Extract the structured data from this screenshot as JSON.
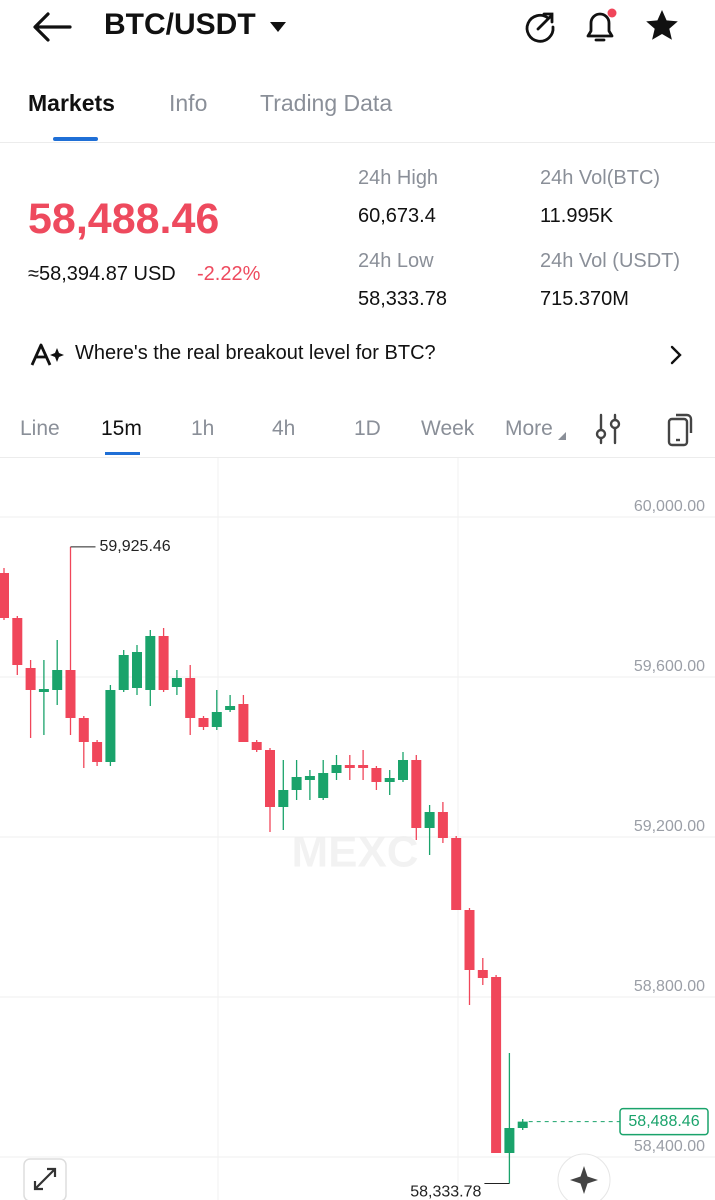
{
  "header": {
    "pair": "BTC/USDT"
  },
  "tabs": [
    "Markets",
    "Info",
    "Trading Data"
  ],
  "price": {
    "last": "58,488.46",
    "usd": "≈58,394.87 USD",
    "change": "-2.22%"
  },
  "stats": [
    {
      "label": "24h High",
      "value": "60,673.4"
    },
    {
      "label": "24h Vol(BTC)",
      "value": "11.995K"
    },
    {
      "label": "24h Low",
      "value": "58,333.78"
    },
    {
      "label": "24h Vol (USDT)",
      "value": "715.370M"
    }
  ],
  "banner": "Where's the real breakout level for BTC?",
  "timeframes": [
    "Line",
    "15m",
    "1h",
    "4h",
    "1D",
    "Week",
    "More"
  ],
  "chart_data": {
    "type": "candlestick",
    "watermark": "MEXC",
    "up_color": "#1aa36b",
    "down_color": "#f0465a",
    "open": [
      59860,
      59747.5,
      59622.5,
      59562.5,
      59567.5,
      59617.5,
      59497.5,
      59437.5,
      59387.5,
      59567.5,
      59572.5,
      59567.5,
      59702.5,
      59575,
      59597.5,
      59497.5,
      59475,
      59517.5,
      59532.5,
      59437.5,
      59417.5,
      59275,
      59317.5,
      59342.5,
      59297.5,
      59360,
      59380,
      59380,
      59372.5,
      59337.5,
      59342.5,
      59392.5,
      59222.5,
      59262.5,
      59197.5,
      59017.5,
      58867.5,
      58850,
      58410,
      58472.5
    ],
    "high": [
      59872.5,
      59752.5,
      59642.5,
      59642.5,
      59692.5,
      59925.46,
      59502.5,
      59442.5,
      59580,
      59667.5,
      59680,
      59717.5,
      59722.5,
      59617.5,
      59630,
      59502.5,
      59567.5,
      59555,
      59555,
      59442.5,
      59422.5,
      59392.5,
      59392.5,
      59367.5,
      59392.5,
      59405,
      59405,
      59417.5,
      59377.5,
      59367.5,
      59412.5,
      59405,
      59280,
      59287.5,
      59202.5,
      59022.5,
      58897.5,
      58855,
      58660,
      58495
    ],
    "low": [
      59742.5,
      59605,
      59447.5,
      59455,
      59530,
      59455,
      59372.5,
      59377.5,
      59377.5,
      59562.5,
      59555,
      59527.5,
      59562.5,
      59555,
      59455,
      59467.5,
      59467.5,
      59512.5,
      59437.5,
      59412.5,
      59212.5,
      59217.5,
      59292.5,
      59292.5,
      59292.5,
      59342.5,
      59342.5,
      59342.5,
      59317.5,
      59305,
      59337.5,
      59192.5,
      59155,
      59185,
      59017.5,
      58780,
      58830,
      58410,
      58333.78,
      58467.5
    ],
    "close": [
      59747.5,
      59630,
      59567.5,
      59570,
      59617.5,
      59497.5,
      59437.5,
      59387.5,
      59567.5,
      59655,
      59662.5,
      59702.5,
      59567.5,
      59597.5,
      59497.5,
      59475,
      59512.5,
      59527.5,
      59437.5,
      59417.5,
      59275,
      59317.5,
      59350,
      59352.5,
      59360,
      59380,
      59372.5,
      59372.5,
      59337.5,
      59347.5,
      59392.5,
      59222.5,
      59262.5,
      59197.5,
      59017.5,
      58867.5,
      58847.5,
      58410,
      58472.5,
      58488.46
    ],
    "ylim": [
      58292.5,
      60150
    ],
    "yticks": [
      {
        "value": 60000,
        "label": "60,000.00"
      },
      {
        "value": 59600,
        "label": "59,600.00"
      },
      {
        "value": 59200,
        "label": "59,200.00"
      },
      {
        "value": 58800,
        "label": "58,800.00"
      },
      {
        "value": 58400,
        "label": "58,400.00"
      }
    ],
    "grid": true,
    "high_label": {
      "value": 59925.46,
      "label": "59,925.46"
    },
    "low_label": {
      "value": 58333.78,
      "label": "58,333.78"
    },
    "last_price": {
      "value": 58488.46,
      "label": "58,488.46"
    }
  }
}
